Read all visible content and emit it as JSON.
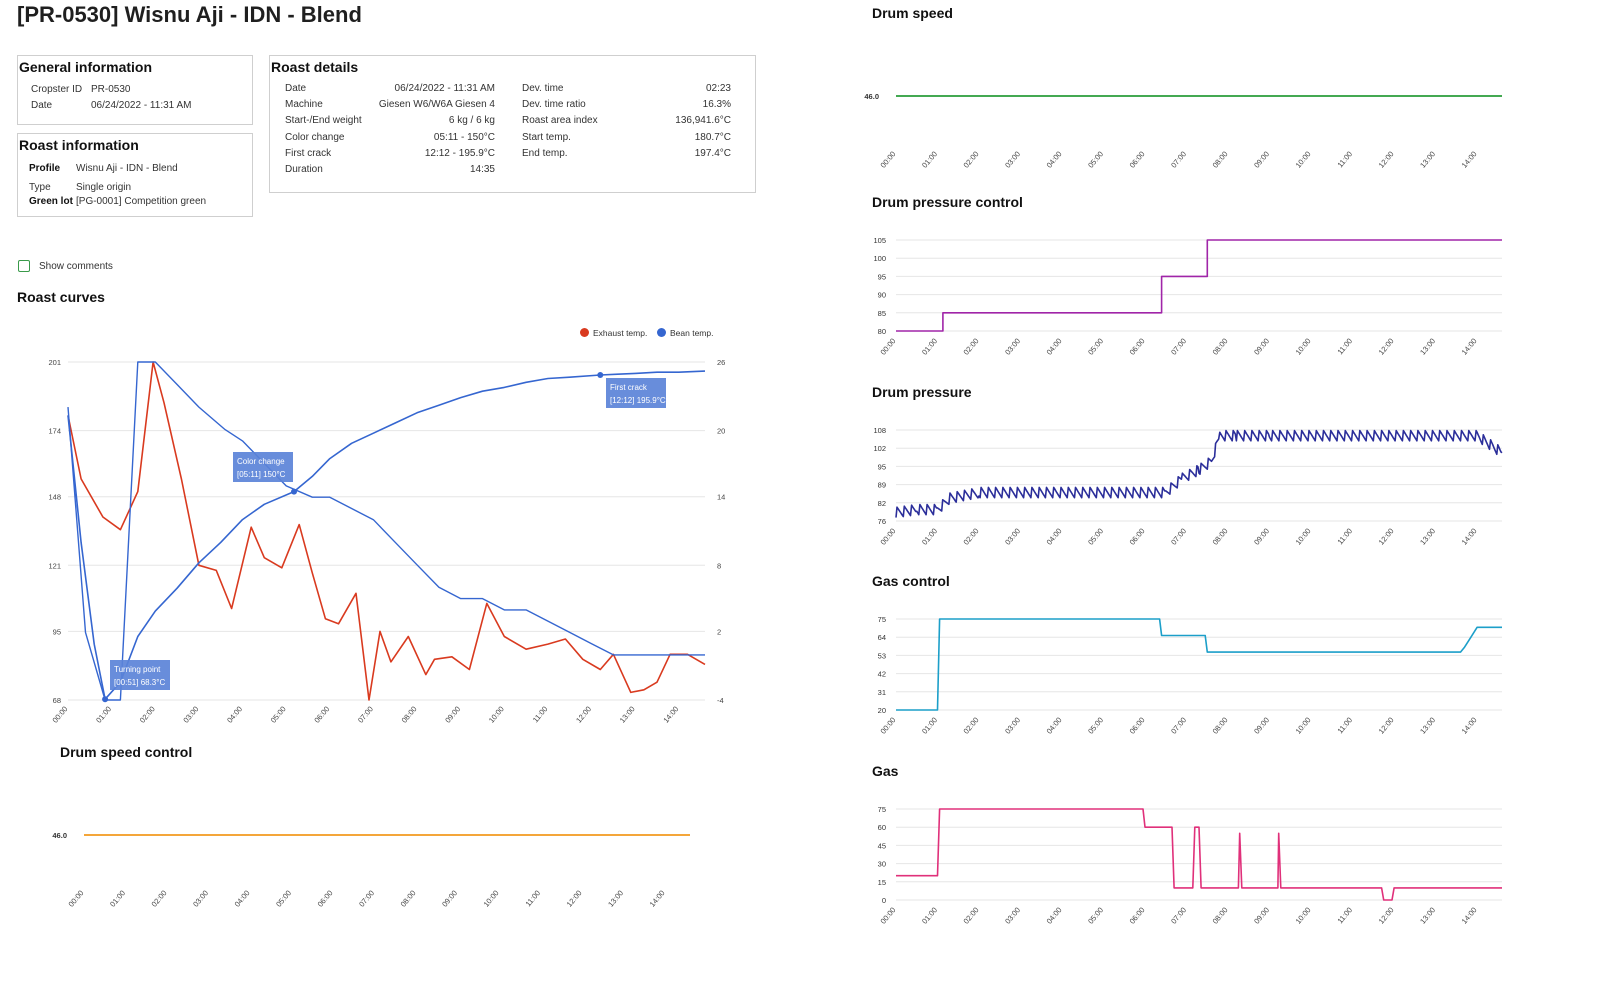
{
  "page_title": "[PR-0530] Wisnu Aji - IDN - Blend",
  "general_info": {
    "title": "General information",
    "rows": [
      {
        "label": "Cropster ID",
        "value": "PR-0530"
      },
      {
        "label": "Date",
        "value": "06/24/2022 - 11:31 AM"
      }
    ]
  },
  "roast_info": {
    "title": "Roast information",
    "rows": [
      {
        "label": "Profile",
        "value": "Wisnu Aji - IDN - Blend"
      },
      {
        "label": "Type",
        "value": "Single origin"
      },
      {
        "label": "Green lot",
        "value": "[PG-0001] Competition green"
      }
    ]
  },
  "roast_details": {
    "title": "Roast details",
    "left": [
      {
        "label": "Date",
        "value": "06/24/2022 - 11:31 AM"
      },
      {
        "label": "Machine",
        "value": "Giesen W6/W6A Giesen 4"
      },
      {
        "label": "Start-/End weight",
        "value": "6 kg / 6 kg"
      },
      {
        "label": "Color change",
        "value": "05:11 - 150°C"
      },
      {
        "label": "First crack",
        "value": "12:12 - 195.9°C"
      },
      {
        "label": "Duration",
        "value": "14:35"
      }
    ],
    "right": [
      {
        "label": "Dev. time",
        "value": "02:23"
      },
      {
        "label": "Dev. time ratio",
        "value": "16.3%"
      },
      {
        "label": "Roast area index",
        "value": "136,941.6°C"
      },
      {
        "label": "Start temp.",
        "value": "180.7°C"
      },
      {
        "label": "End temp.",
        "value": "197.4°C"
      }
    ]
  },
  "show_comments": {
    "label": "Show comments",
    "checked": false
  },
  "time_ticks": [
    "00:00",
    "01:00",
    "02:00",
    "03:00",
    "04:00",
    "05:00",
    "06:00",
    "07:00",
    "08:00",
    "09:00",
    "10:00",
    "11:00",
    "12:00",
    "13:00",
    "14:00"
  ],
  "roast_curves": {
    "title": "Roast curves",
    "legend": [
      {
        "name": "Exhaust temp.",
        "color": "#d93a1f"
      },
      {
        "name": "Bean temp.",
        "color": "#3566d0"
      }
    ],
    "left_ticks": [
      "201",
      "174",
      "148",
      "121",
      "95",
      "68"
    ],
    "right_ticks": [
      "26",
      "20",
      "14",
      "8",
      "2",
      "-4"
    ],
    "annotations": [
      {
        "name": "Turning point",
        "detail": "[00:51] 68.3°C"
      },
      {
        "name": "Color change",
        "detail": "[05:11] 150°C"
      },
      {
        "name": "First crack",
        "detail": "[12:12] 195.9°C"
      }
    ]
  },
  "drum_speed_control": {
    "title": "Drum speed control",
    "value_label": "46.0",
    "color": "#f39a1e"
  },
  "drum_speed": {
    "title": "Drum speed",
    "value_label": "46.0",
    "color": "#2a9d3a"
  },
  "drum_pressure_control": {
    "title": "Drum pressure control",
    "ticks": [
      "105",
      "100",
      "95",
      "90",
      "85",
      "80"
    ],
    "color": "#a025a8"
  },
  "drum_pressure": {
    "title": "Drum pressure",
    "ticks": [
      "108",
      "102",
      "95",
      "89",
      "82",
      "76"
    ],
    "color": "#2b2e9a"
  },
  "gas_control": {
    "title": "Gas control",
    "ticks": [
      "75",
      "64",
      "53",
      "42",
      "31",
      "20"
    ],
    "color": "#1c9fc9"
  },
  "gas": {
    "title": "Gas",
    "ticks": [
      "75",
      "60",
      "45",
      "30",
      "15",
      "0"
    ],
    "color": "#e0307a"
  },
  "chart_data": [
    {
      "type": "line",
      "x_unit": "mm:ss",
      "series": [
        {
          "name": "Exhaust temp.",
          "x": [
            0,
            0.3,
            0.8,
            1.2,
            1.6,
            1.95,
            2.2,
            2.6,
            3.0,
            3.4,
            3.75,
            4.2,
            4.5,
            4.9,
            5.3,
            5.6,
            5.9,
            6.2,
            6.6,
            6.9,
            7.15,
            7.4,
            7.8,
            8.2,
            8.4,
            8.8,
            9.2,
            9.6,
            10.0,
            10.5,
            11.0,
            11.4,
            11.8,
            12.2,
            12.5,
            12.9,
            13.2,
            13.5,
            13.8,
            14.2,
            14.6
          ],
          "y": [
            180,
            155,
            140,
            135,
            150,
            201,
            185,
            155,
            121,
            119,
            104,
            136,
            124,
            120,
            137,
            118,
            100,
            98,
            110,
            68,
            95,
            83,
            93,
            78,
            84,
            85,
            80,
            106,
            93,
            88,
            90,
            92,
            84,
            80,
            86,
            71,
            72,
            75,
            86,
            86,
            82
          ]
        },
        {
          "name": "Bean temp.",
          "x": [
            0,
            0.3,
            0.6,
            0.85,
            1.2,
            1.6,
            2.0,
            2.5,
            3.0,
            3.5,
            4.0,
            4.5,
            5.18,
            5.6,
            6.0,
            6.5,
            7.0,
            7.5,
            8.0,
            8.5,
            9.0,
            9.5,
            10.0,
            10.5,
            11.0,
            11.5,
            12.2,
            12.6,
            13.0,
            13.5,
            14.0,
            14.6
          ],
          "y": [
            180,
            130,
            90,
            68.3,
            75,
            93,
            103,
            112,
            122,
            130,
            139,
            145,
            150,
            156,
            163,
            169,
            173,
            177,
            181,
            184,
            187,
            189.5,
            191,
            193,
            194.5,
            195,
            195.9,
            196.2,
            196.5,
            197,
            197,
            197.4
          ]
        },
        {
          "name": "Bean temp. (right axis)",
          "x": [
            0,
            0.4,
            0.85,
            1.2,
            1.6,
            2.0,
            2.5,
            3.0,
            3.6,
            4.0,
            4.5,
            5.0,
            5.6,
            6.0,
            6.5,
            7.0,
            7.5,
            8.0,
            8.5,
            9.0,
            9.5,
            10.0,
            10.5,
            11.0,
            11.5,
            12.0,
            12.5,
            13.0,
            13.5,
            14.0,
            14.6
          ],
          "y": [
            22,
            2,
            -4,
            -4,
            26,
            26,
            24,
            22,
            20,
            19,
            17,
            15,
            14,
            14,
            13,
            12,
            10,
            8,
            6,
            5,
            5,
            4,
            4,
            3,
            2,
            1,
            0,
            0,
            0,
            0,
            0
          ]
        }
      ],
      "y_ticks_left": [
        201,
        174,
        148,
        121,
        95,
        68
      ],
      "y_ticks_right": [
        26,
        20,
        14,
        8,
        2,
        -4
      ],
      "xlim": [
        0,
        14.6
      ]
    },
    {
      "type": "line",
      "title": "Drum speed control",
      "series": [
        {
          "x": [
            0,
            14.6
          ],
          "y": [
            46,
            46
          ]
        }
      ]
    },
    {
      "type": "line",
      "title": "Drum speed",
      "series": [
        {
          "x": [
            0,
            14.6
          ],
          "y": [
            46,
            46
          ]
        }
      ]
    },
    {
      "type": "line",
      "title": "Drum pressure control",
      "series": [
        {
          "x": [
            0,
            1.13,
            1.13,
            6.4,
            6.4,
            7.5,
            7.5,
            14.6
          ],
          "y": [
            80,
            80,
            85,
            85,
            95,
            95,
            105,
            105
          ]
        }
      ],
      "ylim": [
        80,
        105
      ]
    },
    {
      "type": "line",
      "title": "Drum pressure",
      "series": [
        {
          "x": [
            0,
            0.5,
            1.0,
            1.3,
            2.0,
            3.0,
            4.0,
            5.0,
            6.0,
            6.5,
            6.9,
            7.3,
            7.6,
            7.8,
            8.2,
            9.0,
            10.0,
            11.0,
            12.0,
            13.0,
            14.0,
            14.6
          ],
          "y": [
            79,
            80,
            80,
            84,
            86,
            86,
            86,
            86,
            86,
            86,
            91,
            94,
            97,
            106,
            106,
            106,
            106,
            106,
            106,
            106,
            106,
            100
          ]
        }
      ],
      "ylim": [
        76,
        108
      ]
    },
    {
      "type": "line",
      "title": "Gas control",
      "series": [
        {
          "x": [
            0,
            1.0,
            1.05,
            6.35,
            6.4,
            7.45,
            7.5,
            13.6,
            13.7,
            13.85,
            14.0,
            14.6
          ],
          "y": [
            20,
            20,
            75,
            75,
            65,
            65,
            55,
            55,
            58,
            64,
            70,
            70
          ]
        }
      ],
      "ylim": [
        20,
        75
      ]
    },
    {
      "type": "line",
      "title": "Gas",
      "series": [
        {
          "x": [
            0,
            1.0,
            1.05,
            5.95,
            6.0,
            6.65,
            6.7,
            7.15,
            7.2,
            7.3,
            7.35,
            8.25,
            8.28,
            8.33,
            9.2,
            9.22,
            9.27,
            11.7,
            11.75,
            11.95,
            12.0,
            14.6
          ],
          "y": [
            20,
            20,
            75,
            75,
            60,
            60,
            10,
            10,
            60,
            60,
            10,
            10,
            55,
            10,
            10,
            55,
            10,
            10,
            0,
            0,
            10,
            10
          ]
        }
      ],
      "ylim": [
        0,
        75
      ]
    }
  ]
}
